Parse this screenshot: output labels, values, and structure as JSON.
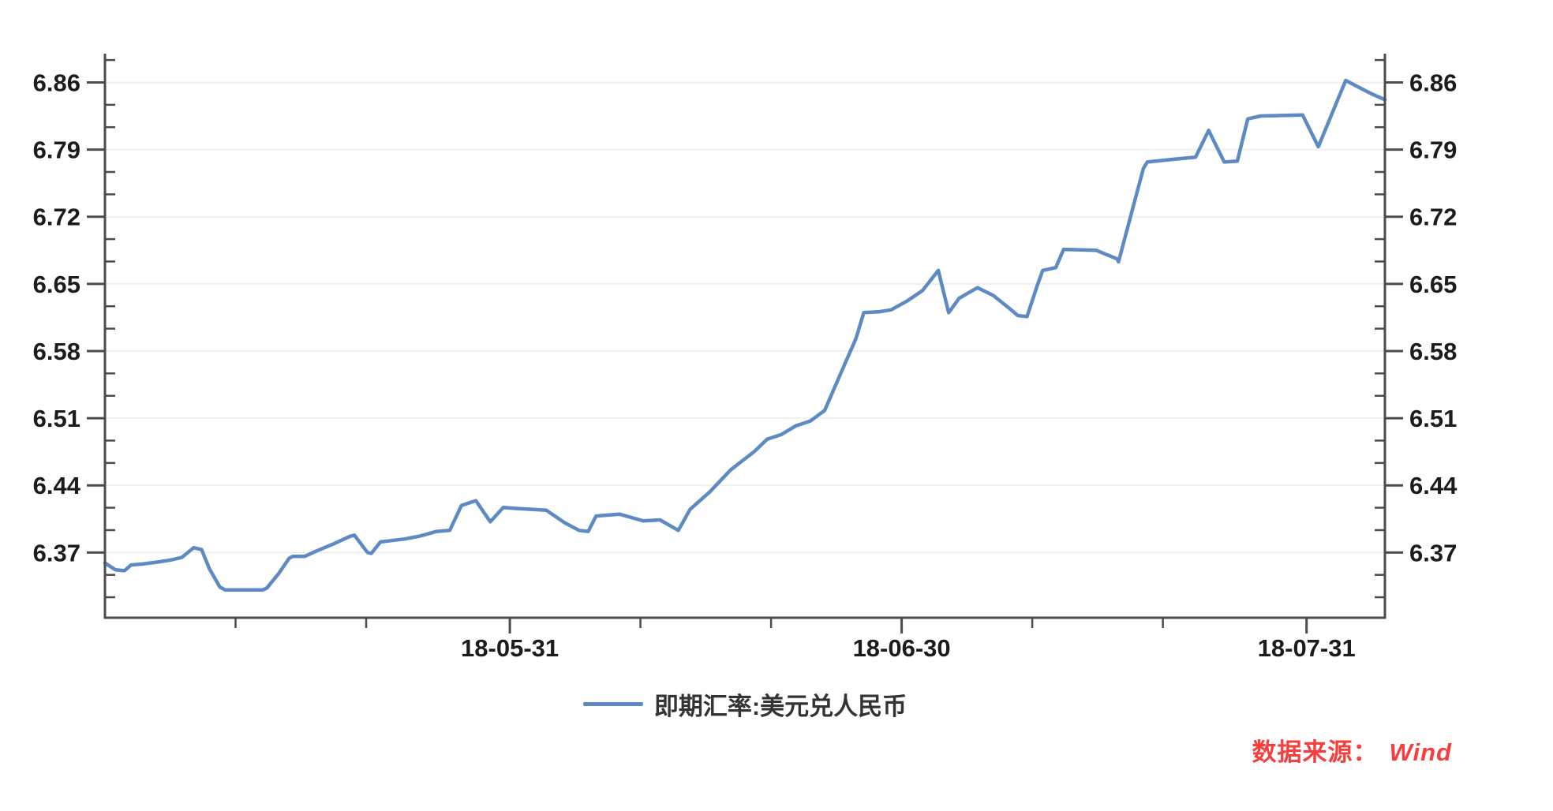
{
  "chart_data": {
    "type": "line",
    "title": "",
    "series": [
      {
        "name": "即期汇率:美元兑人民币",
        "color": "#5e8ac3",
        "x_unit": "days-after-2018-04-30 (derived from visible date ticks)",
        "points": [
          [
            0,
            6.359
          ],
          [
            0.8,
            6.352
          ],
          [
            1.5,
            6.351
          ],
          [
            2.0,
            6.357
          ],
          [
            2.9,
            6.358
          ],
          [
            4.0,
            6.36
          ],
          [
            5.0,
            6.362
          ],
          [
            5.9,
            6.365
          ],
          [
            6.8,
            6.375
          ],
          [
            7.4,
            6.373
          ],
          [
            8.0,
            6.353
          ],
          [
            8.8,
            6.334
          ],
          [
            9.2,
            6.331
          ],
          [
            12.1,
            6.331
          ],
          [
            12.4,
            6.333
          ],
          [
            13.3,
            6.348
          ],
          [
            14.1,
            6.364
          ],
          [
            14.4,
            6.366
          ],
          [
            15.3,
            6.366
          ],
          [
            16.1,
            6.371
          ],
          [
            17.5,
            6.379
          ],
          [
            18.8,
            6.387
          ],
          [
            19.1,
            6.388
          ],
          [
            20.1,
            6.37
          ],
          [
            20.4,
            6.369
          ],
          [
            21.1,
            6.381
          ],
          [
            21.7,
            6.382
          ],
          [
            22.9,
            6.384
          ],
          [
            24.1,
            6.387
          ],
          [
            25.4,
            6.392
          ],
          [
            26.4,
            6.393
          ],
          [
            27.3,
            6.419
          ],
          [
            28.4,
            6.424
          ],
          [
            29.5,
            6.402
          ],
          [
            30.5,
            6.417
          ],
          [
            31.4,
            6.416
          ],
          [
            33.8,
            6.414
          ],
          [
            35.2,
            6.401
          ],
          [
            36.3,
            6.393
          ],
          [
            37.0,
            6.392
          ],
          [
            37.6,
            6.408
          ],
          [
            39.4,
            6.41
          ],
          [
            41.2,
            6.403
          ],
          [
            42.5,
            6.404
          ],
          [
            43.9,
            6.393
          ],
          [
            44.8,
            6.415
          ],
          [
            46.3,
            6.433
          ],
          [
            47.9,
            6.456
          ],
          [
            49.7,
            6.475
          ],
          [
            50.7,
            6.488
          ],
          [
            51.8,
            6.493
          ],
          [
            52.9,
            6.502
          ],
          [
            54.0,
            6.507
          ],
          [
            55.1,
            6.518
          ],
          [
            55.9,
            6.543
          ],
          [
            56.7,
            6.568
          ],
          [
            57.5,
            6.593
          ],
          [
            58.1,
            6.62
          ],
          [
            59.3,
            6.621
          ],
          [
            60.2,
            6.623
          ],
          [
            61.4,
            6.632
          ],
          [
            62.6,
            6.643
          ],
          [
            63.8,
            6.664
          ],
          [
            64.6,
            6.62
          ],
          [
            65.4,
            6.635
          ],
          [
            66.8,
            6.646
          ],
          [
            68.0,
            6.638
          ],
          [
            69.2,
            6.625
          ],
          [
            69.9,
            6.617
          ],
          [
            70.6,
            6.616
          ],
          [
            71.4,
            6.649
          ],
          [
            71.8,
            6.664
          ],
          [
            72.8,
            6.667
          ],
          [
            73.4,
            6.686
          ],
          [
            75.9,
            6.685
          ],
          [
            77.5,
            6.676
          ],
          [
            77.6,
            6.673
          ],
          [
            79.5,
            6.77
          ],
          [
            79.8,
            6.777
          ],
          [
            81.9,
            6.78
          ],
          [
            83.5,
            6.782
          ],
          [
            84.5,
            6.81
          ],
          [
            85.7,
            6.777
          ],
          [
            86.7,
            6.778
          ],
          [
            87.5,
            6.822
          ],
          [
            88.5,
            6.825
          ],
          [
            91.7,
            6.826
          ],
          [
            92.9,
            6.793
          ],
          [
            95.0,
            6.862
          ],
          [
            97.0,
            6.848
          ],
          [
            98.0,
            6.842
          ]
        ]
      }
    ],
    "x_axis": {
      "range_days": [
        0,
        98
      ],
      "ticks": [
        {
          "label": "18-05-31",
          "day": 31
        },
        {
          "label": "18-06-30",
          "day": 61
        },
        {
          "label": "18-07-31",
          "day": 92
        }
      ],
      "minor_tick_days": [
        10,
        20,
        41,
        51,
        71,
        81
      ]
    },
    "y_axis": {
      "range": [
        6.302,
        6.89
      ],
      "tick_values": [
        6.37,
        6.44,
        6.51,
        6.58,
        6.65,
        6.72,
        6.79,
        6.86
      ],
      "tick_labels": [
        "6.37",
        "6.44",
        "6.51",
        "6.58",
        "6.65",
        "6.72",
        "6.79",
        "6.86"
      ],
      "minor_step": 0.0233333,
      "labels_on_left": true,
      "labels_on_right": true
    },
    "grid": {
      "horizontal": true,
      "vertical": false
    },
    "legend": {
      "position": "bottom-center",
      "entries": [
        {
          "label": "即期汇率:美元兑人民币",
          "color": "#5e8ac3"
        }
      ]
    }
  },
  "source_note": {
    "prefix": "数据来源：",
    "source": "Wind",
    "color": "#f63e3e"
  },
  "colors": {
    "background": "#ffffff",
    "axis": "#4c4c4c",
    "grid": "#efeff0",
    "tick_label": "#1c1c1c",
    "legend_text": "#333333",
    "line": "#5e8ac3"
  }
}
